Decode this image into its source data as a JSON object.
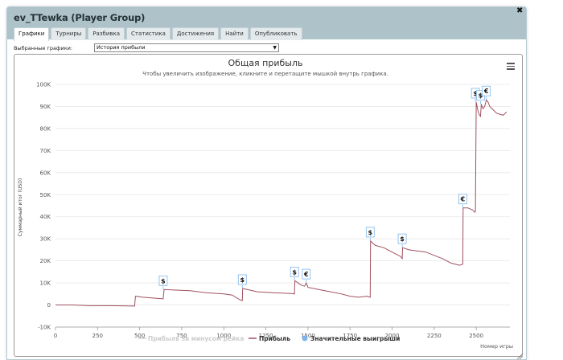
{
  "window": {
    "title": "ev_TTewka (Player Group)",
    "close_icon": "✖"
  },
  "tabs": [
    {
      "label": "Графики",
      "active": true
    },
    {
      "label": "Турниры"
    },
    {
      "label": "Разбивка"
    },
    {
      "label": "Статистика"
    },
    {
      "label": "Достижения"
    },
    {
      "label": "Найти"
    },
    {
      "label": "Опубликовать"
    }
  ],
  "selector": {
    "label": "Выбранные графики:",
    "value": "История прибыли"
  },
  "chart_data": {
    "type": "line",
    "title": "Общая прибыль",
    "subtitle": "Чтобы увеличить изображение, кликните и перетащите мышкой внутрь графика.",
    "ylabel": "Суммарный итог (USD)",
    "xlabel": "Номер игры",
    "ylim": [
      -10000,
      100000
    ],
    "xlim": [
      0,
      2700
    ],
    "y_ticks": [
      -10000,
      0,
      10000,
      20000,
      30000,
      40000,
      50000,
      60000,
      70000,
      80000,
      90000,
      100000
    ],
    "y_tick_labels": [
      "-10K",
      "0",
      "10K",
      "20K",
      "30K",
      "40K",
      "50K",
      "60K",
      "70K",
      "80K",
      "90K",
      "100K"
    ],
    "x_ticks": [
      0,
      250,
      500,
      750,
      1000,
      1250,
      1500,
      1750,
      2000,
      2250,
      2500
    ],
    "x_tick_labels": [
      "0",
      "250",
      "500",
      "750",
      "1000",
      "1250",
      "1500",
      "1750",
      "2000",
      "2250",
      "2500"
    ],
    "grid": true,
    "legend_position": "bottom",
    "series": [
      {
        "name": "Прибыль за минусом рейка",
        "color": "#cccccc",
        "hidden": true,
        "x": [],
        "y": []
      },
      {
        "name": "Прибыль",
        "color": "#a05060",
        "x": [
          0,
          100,
          200,
          300,
          400,
          470,
          475,
          520,
          600,
          640,
          645,
          700,
          800,
          900,
          1000,
          1050,
          1100,
          1110,
          1112,
          1200,
          1300,
          1400,
          1420,
          1422,
          1460,
          1480,
          1490,
          1500,
          1600,
          1700,
          1750,
          1800,
          1850,
          1870,
          1872,
          1900,
          1950,
          2000,
          2050,
          2060,
          2062,
          2100,
          2200,
          2300,
          2350,
          2400,
          2420,
          2422,
          2450,
          2480,
          2490,
          2495,
          2500,
          2510,
          2520,
          2525,
          2530,
          2540,
          2550,
          2560,
          2570,
          2580,
          2600,
          2620,
          2640,
          2660,
          2680
        ],
        "y": [
          0,
          0,
          -300,
          -300,
          -400,
          -500,
          4000,
          3500,
          3000,
          2800,
          7000,
          6800,
          6500,
          5500,
          5000,
          4500,
          2200,
          2000,
          7500,
          6000,
          5500,
          5200,
          5000,
          11000,
          9000,
          8500,
          10000,
          8000,
          6500,
          5000,
          4000,
          3500,
          4000,
          3500,
          29000,
          27000,
          26000,
          24000,
          22000,
          21000,
          26000,
          25000,
          24000,
          21000,
          19000,
          18000,
          18500,
          44000,
          44000,
          43000,
          42000,
          42500,
          92000,
          88000,
          86000,
          85500,
          91000,
          89000,
          90000,
          93000,
          92000,
          90000,
          88500,
          87000,
          86500,
          86000,
          87500
        ]
      },
      {
        "name": "Значительные выигрыши",
        "color": "#7cb5ec",
        "marker": true,
        "points": [
          {
            "x": 640,
            "y": 7000,
            "label": "$"
          },
          {
            "x": 1110,
            "y": 7500,
            "label": "$"
          },
          {
            "x": 1420,
            "y": 11000,
            "label": "$"
          },
          {
            "x": 1490,
            "y": 10000,
            "label": "€"
          },
          {
            "x": 1870,
            "y": 29000,
            "label": "$"
          },
          {
            "x": 2060,
            "y": 26000,
            "label": "$"
          },
          {
            "x": 2420,
            "y": 44000,
            "label": "€"
          },
          {
            "x": 2495,
            "y": 92000,
            "label": "$"
          },
          {
            "x": 2525,
            "y": 91000,
            "label": "$"
          },
          {
            "x": 2560,
            "y": 93000,
            "label": "€"
          }
        ]
      }
    ]
  }
}
